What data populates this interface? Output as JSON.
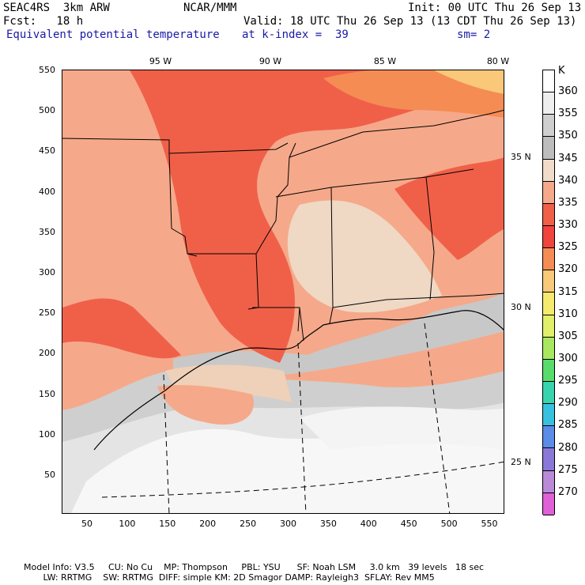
{
  "header": {
    "line1_left": "SEAC4RS  3km ARW",
    "line1_mid": "NCAR/MMM",
    "line1_right": "Init: 00 UTC Thu 26 Sep 13",
    "line2_left": "Fcst:   18 h",
    "line2_right": "Valid: 18 UTC Thu 26 Sep 13 (13 CDT Thu 26 Sep 13)",
    "line3_left": "Equivalent potential temperature",
    "line3_mid": "at k-index =  39",
    "line3_right": "sm= 2"
  },
  "axes": {
    "x_ticks": [
      "50",
      "100",
      "150",
      "200",
      "250",
      "300",
      "350",
      "400",
      "450",
      "500",
      "550"
    ],
    "y_ticks": [
      "550",
      "500",
      "450",
      "400",
      "350",
      "300",
      "250",
      "200",
      "150",
      "100",
      "50"
    ],
    "lon_labels": [
      "95 W",
      "90 W",
      "85 W",
      "80 W"
    ],
    "lat_labels": [
      "35 N",
      "30 N",
      "25 N"
    ]
  },
  "colorbar": {
    "unit": "K",
    "levels": [
      "360",
      "355",
      "350",
      "345",
      "340",
      "335",
      "330",
      "325",
      "320",
      "315",
      "310",
      "305",
      "300",
      "295",
      "290",
      "285",
      "280",
      "275",
      "270"
    ],
    "colors": [
      "#ffffff",
      "#eeeeee",
      "#cfcfcf",
      "#bdbdbd",
      "#f0dcc8",
      "#f5a98a",
      "#f06049",
      "#f0443c",
      "#f58c54",
      "#f9c878",
      "#f5ea6e",
      "#e0f06a",
      "#a8e860",
      "#58dc6c",
      "#38d4b0",
      "#38c0e0",
      "#5a8ce8",
      "#8a78d8",
      "#b88ad8",
      "#e060d8"
    ]
  },
  "footer": {
    "line1": "Model Info: V3.5     CU: No Cu    MP: Thompson     PBL: YSU      SF: Noah LSM     3.0 km   39 levels   18 sec",
    "line2": "       LW: RRTMG    SW: RRTMG  DIFF: simple KM: 2D Smagor DAMP: Rayleigh3  SFLAY: Rev MM5"
  }
}
